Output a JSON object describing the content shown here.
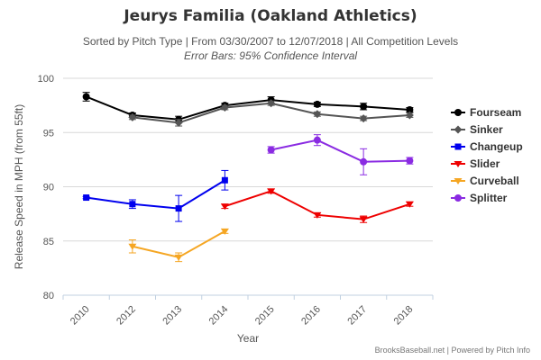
{
  "header": {
    "title": "Jeurys Familia (Oakland Athletics)",
    "subtitle": "Sorted by Pitch Type | From 03/30/2007 to 12/07/2018 | All Competition Levels",
    "subtitle2": "Error Bars: 95% Confidence Interval"
  },
  "credits": "BrooksBaseball.net | Powered by Pitch Info",
  "chart_data": {
    "type": "line",
    "title": "Jeurys Familia (Oakland Athletics)",
    "xlabel": "Year",
    "ylabel": "Release Speed in MPH (from 55ft)",
    "categories": [
      "2010",
      "2012",
      "2013",
      "2014",
      "2015",
      "2016",
      "2017",
      "2018"
    ],
    "ylim": [
      80,
      100
    ],
    "yticks": [
      80,
      85,
      90,
      95,
      100
    ],
    "grid": true,
    "legend_position": "right",
    "series": [
      {
        "name": "Fourseam",
        "color": "#000000",
        "marker": "circle",
        "values": [
          98.3,
          96.6,
          96.2,
          97.5,
          98.0,
          97.6,
          97.4,
          97.1
        ],
        "errors": [
          0.4,
          0.2,
          0.3,
          0.2,
          0.3,
          0.2,
          0.3,
          0.2
        ]
      },
      {
        "name": "Sinker",
        "color": "#555555",
        "marker": "diamond",
        "values": [
          null,
          96.4,
          95.9,
          97.3,
          97.7,
          96.7,
          96.3,
          96.6
        ],
        "errors": [
          null,
          0.2,
          0.3,
          0.2,
          0.2,
          0.2,
          0.2,
          0.2
        ]
      },
      {
        "name": "Changeup",
        "color": "#0000ee",
        "marker": "square",
        "values": [
          89.0,
          88.4,
          88.0,
          90.6,
          null,
          null,
          null,
          null
        ],
        "errors": [
          0.1,
          0.4,
          1.2,
          0.9,
          null,
          null,
          null,
          null
        ]
      },
      {
        "name": "Slider",
        "color": "#ee0000",
        "marker": "triangle-down",
        "values": [
          null,
          null,
          null,
          88.2,
          89.6,
          87.4,
          87.0,
          88.4
        ],
        "errors": [
          null,
          null,
          null,
          0.2,
          0.2,
          0.2,
          0.3,
          0.2
        ]
      },
      {
        "name": "Curveball",
        "color": "#f5a623",
        "marker": "triangle-down",
        "values": [
          null,
          84.5,
          83.5,
          85.9,
          null,
          null,
          null,
          null
        ],
        "errors": [
          null,
          0.6,
          0.4,
          0.2,
          null,
          null,
          null,
          null
        ]
      },
      {
        "name": "Splitter",
        "color": "#8a2be2",
        "marker": "circle",
        "values": [
          null,
          null,
          null,
          null,
          93.4,
          94.3,
          92.3,
          92.4
        ],
        "errors": [
          null,
          null,
          null,
          null,
          0.3,
          0.5,
          1.2,
          0.3
        ]
      }
    ]
  }
}
